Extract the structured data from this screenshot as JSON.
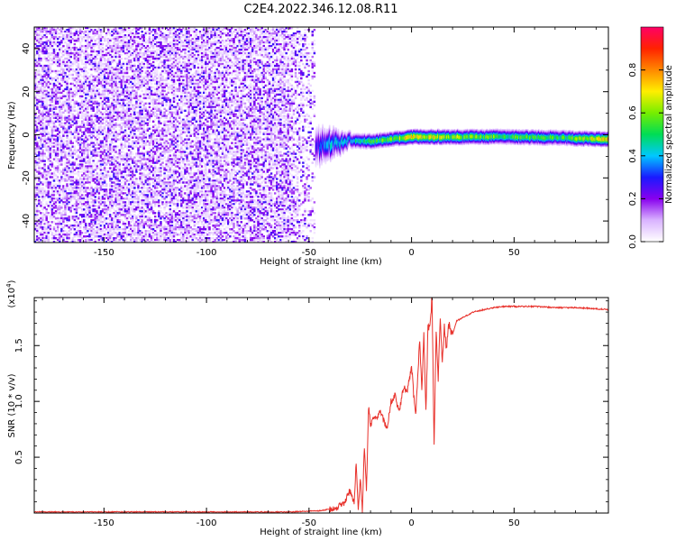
{
  "title": "C2E4.2022.346.12.08.R11",
  "chart_data": [
    {
      "type": "heatmap",
      "xlabel": "Height of straight line (km)",
      "ylabel": "Frequency (Hz)",
      "xlim": [
        -184,
        96
      ],
      "ylim": [
        -50,
        50
      ],
      "xticks": [
        -150,
        -100,
        -50,
        0,
        50
      ],
      "yticks": [
        -40,
        -20,
        0,
        20,
        40
      ],
      "colorbar": {
        "label": "Normalized spectral amplitude",
        "range": [
          0,
          1
        ],
        "ticks": [
          0.0,
          0.2,
          0.4,
          0.6,
          0.8
        ],
        "colors": [
          "#ffffff",
          "#d9b3ff",
          "#8800ee",
          "#1a1aff",
          "#00c8ff",
          "#00dd55",
          "#77ee00",
          "#ffee00",
          "#ff8800",
          "#ff2200",
          "#ff0066"
        ]
      },
      "noise_region_x": [
        -184,
        -47
      ],
      "signal_band": [
        {
          "x": -47,
          "center": -6,
          "half_width": 5,
          "peak": 0.3
        },
        {
          "x": -40,
          "center": -4,
          "half_width": 4,
          "peak": 0.42
        },
        {
          "x": -30,
          "center": -3,
          "half_width": 2,
          "peak": 0.45
        },
        {
          "x": -20,
          "center": -3,
          "half_width": 2,
          "peak": 0.55
        },
        {
          "x": -10,
          "center": -2,
          "half_width": 2,
          "peak": 0.62
        },
        {
          "x": 0,
          "center": -1,
          "half_width": 2,
          "peak": 0.75
        },
        {
          "x": 10,
          "center": -1,
          "half_width": 2,
          "peak": 0.72
        },
        {
          "x": 25,
          "center": -1,
          "half_width": 2,
          "peak": 0.62
        },
        {
          "x": 50,
          "center": -1,
          "half_width": 2,
          "peak": 0.58
        },
        {
          "x": 75,
          "center": -1.5,
          "half_width": 2,
          "peak": 0.56
        },
        {
          "x": 90,
          "center": -2,
          "half_width": 2,
          "peak": 0.75
        },
        {
          "x": 96,
          "center": -2,
          "half_width": 2,
          "peak": 0.78
        }
      ]
    },
    {
      "type": "line",
      "xlabel": "Height of straight line (km)",
      "ylabel": "SNR (10 * v/v)",
      "scale_note": "(x10^4)",
      "xlim": [
        -184,
        96
      ],
      "ylim": [
        0,
        1.93
      ],
      "xticks": [
        -150,
        -100,
        -50,
        0,
        50
      ],
      "yticks": [
        0.5,
        1.0,
        1.5
      ],
      "ytick_labels": [
        "0.5",
        "1.0",
        "1.5"
      ],
      "series": [
        {
          "color": "#e8302a",
          "x": [
            -184,
            -150,
            -100,
            -60,
            -45,
            -38,
            -33,
            -30,
            -28,
            -27,
            -26,
            -25,
            -24,
            -23,
            -22,
            -21,
            -20,
            -18,
            -15,
            -12,
            -10,
            -8,
            -6,
            -4,
            -2,
            0,
            2,
            4,
            5,
            6,
            7,
            8,
            9,
            10,
            11,
            12,
            13,
            14,
            15,
            16,
            17,
            18,
            20,
            22,
            25,
            30,
            35,
            40,
            45,
            50,
            60,
            70,
            80,
            90,
            96
          ],
          "y": [
            0.01,
            0.01,
            0.01,
            0.01,
            0.02,
            0.04,
            0.08,
            0.2,
            0.1,
            0.45,
            0.05,
            0.3,
            0.02,
            0.6,
            0.2,
            0.95,
            0.8,
            0.85,
            0.9,
            0.75,
            1.0,
            1.05,
            0.9,
            1.12,
            1.1,
            1.3,
            0.85,
            1.55,
            1.1,
            1.6,
            0.9,
            1.65,
            1.7,
            1.93,
            0.6,
            1.65,
            1.2,
            1.72,
            1.35,
            1.68,
            1.45,
            1.7,
            1.6,
            1.72,
            1.75,
            1.8,
            1.82,
            1.84,
            1.85,
            1.85,
            1.85,
            1.84,
            1.84,
            1.83,
            1.82
          ]
        }
      ]
    }
  ]
}
